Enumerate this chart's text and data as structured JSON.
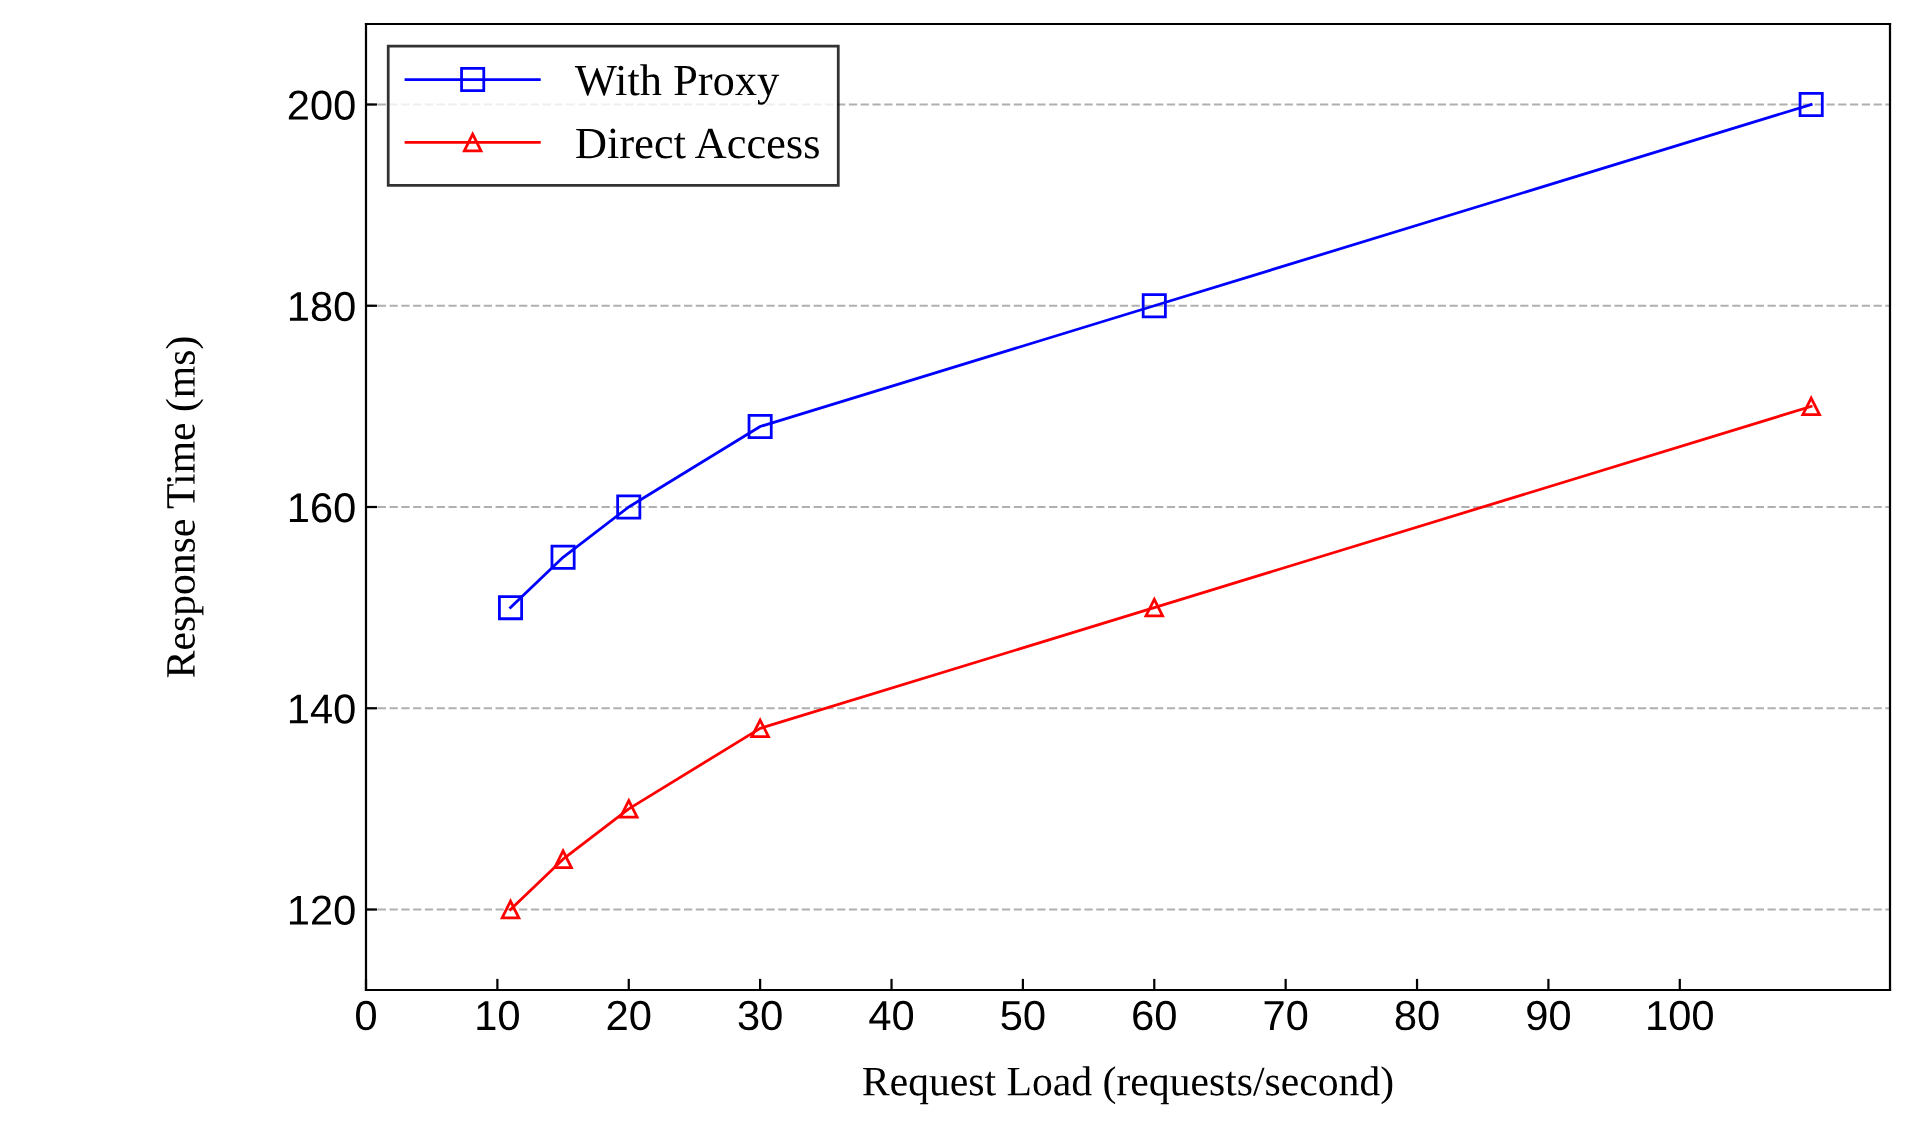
{
  "chart_data": {
    "type": "line",
    "xlabel": "Request Load (requests/second)",
    "ylabel": "Response Time (ms)",
    "x": [
      11,
      15,
      20,
      30,
      60,
      110
    ],
    "series": [
      {
        "name": "With Proxy",
        "color": "#0000ff",
        "marker": "square",
        "values": [
          150,
          155,
          160,
          168,
          180,
          200
        ]
      },
      {
        "name": "Direct Access",
        "color": "#ff0000",
        "marker": "triangle",
        "values": [
          120,
          125,
          130,
          138,
          150,
          170
        ]
      }
    ],
    "xlim": [
      0,
      116
    ],
    "xticks": [
      0,
      10,
      20,
      30,
      40,
      50,
      60,
      70,
      80,
      90,
      100
    ],
    "ylim": [
      112,
      208
    ],
    "yticks": [
      120,
      140,
      160,
      180,
      200
    ],
    "grid": "y",
    "legend": "top left",
    "line_style": "solid"
  }
}
